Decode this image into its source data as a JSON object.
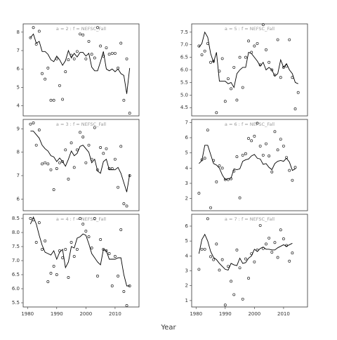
{
  "xlabel": "Year",
  "chart_data": [
    {
      "type": "scatter",
      "title": "a = 2 : f = NEFSC_Fall",
      "x": [
        1981,
        1982,
        1983,
        1984,
        1985,
        1986,
        1987,
        1988,
        1989,
        1990,
        1991,
        1992,
        1993,
        1994,
        1995,
        1996,
        1997,
        1998,
        1999,
        2000,
        2001,
        2002,
        2003,
        2004,
        2005,
        2006,
        2007,
        2008,
        2009,
        2010,
        2011,
        2012,
        2013,
        2014,
        2015
      ],
      "values": [
        7.7,
        8.25,
        7.35,
        8.05,
        5.75,
        5.45,
        6.05,
        4.3,
        4.3,
        6.55,
        5.1,
        4.35,
        5.85,
        6.5,
        6.75,
        6.55,
        6.95,
        7.9,
        7.85,
        6.55,
        7.5,
        6.8,
        6.6,
        8.25,
        7.25,
        6.7,
        7.15,
        6.8,
        6.85,
        6.85,
        6.05,
        7.4,
        4.3,
        6.55,
        3.6
      ],
      "line_values": [
        7.7,
        7.9,
        7.4,
        7.5,
        6.95,
        6.95,
        6.8,
        6.5,
        6.4,
        6.7,
        6.5,
        6.2,
        6.45,
        7.0,
        6.6,
        6.85,
        6.65,
        6.9,
        6.9,
        6.7,
        6.85,
        6.1,
        5.9,
        5.9,
        6.4,
        6.95,
        6.0,
        5.9,
        6.0,
        5.85,
        6.0,
        5.75,
        5.65,
        4.65,
        6.05
      ],
      "xlim": [
        1978.5,
        2018.2
      ],
      "ylim": [
        3.45,
        8.45
      ],
      "yticks": [
        4,
        5,
        6,
        7,
        8
      ]
    },
    {
      "type": "scatter",
      "title": "a = 3 : f = NEFSC_Fall",
      "x": [
        1981,
        1982,
        1983,
        1984,
        1985,
        1986,
        1987,
        1988,
        1989,
        1990,
        1991,
        1992,
        1993,
        1994,
        1995,
        1996,
        1997,
        1998,
        1999,
        2000,
        2001,
        2002,
        2003,
        2004,
        2005,
        2006,
        2007,
        2008,
        2009,
        2010,
        2011,
        2012,
        2013,
        2014,
        2015
      ],
      "values": [
        9.2,
        9.25,
        8.3,
        8.95,
        7.5,
        7.55,
        7.5,
        7.25,
        6.4,
        7.3,
        7.55,
        7.6,
        8.1,
        6.85,
        8.4,
        7.35,
        8.1,
        8.85,
        8.65,
        7.55,
        8.3,
        7.7,
        9.05,
        7.25,
        8.2,
        7.95,
        8.15,
        7.3,
        7.3,
        7.7,
        6.5,
        8.25,
        5.8,
        5.7,
        7.0
      ],
      "line_values": [
        8.9,
        8.9,
        8.75,
        8.6,
        8.3,
        8.15,
        8.05,
        7.85,
        7.8,
        7.6,
        7.75,
        7.6,
        7.4,
        7.7,
        8.05,
        7.85,
        7.95,
        8.25,
        8.3,
        8.15,
        8.0,
        7.55,
        7.7,
        7.2,
        7.1,
        7.6,
        7.7,
        7.25,
        7.25,
        7.25,
        7.35,
        7.1,
        6.7,
        6.3,
        7.05
      ],
      "xlim": [
        1978.5,
        2018.2
      ],
      "ylim": [
        5.5,
        9.4
      ],
      "yticks": [
        6,
        7,
        8,
        9
      ]
    },
    {
      "type": "scatter",
      "title": "a = 4 : f = NEFSC_Fall",
      "x": [
        1981,
        1982,
        1983,
        1984,
        1985,
        1986,
        1987,
        1988,
        1989,
        1990,
        1991,
        1992,
        1993,
        1994,
        1995,
        1996,
        1997,
        1998,
        1999,
        2000,
        2001,
        2002,
        2003,
        2004,
        2005,
        2006,
        2007,
        2008,
        2009,
        2010,
        2011,
        2012,
        2013,
        2014,
        2015
      ],
      "values": [
        8.5,
        8.45,
        7.65,
        8.35,
        7.4,
        7.7,
        6.25,
        6.55,
        6.8,
        6.5,
        7.35,
        7.1,
        7.4,
        6.4,
        7.65,
        7.15,
        7.4,
        8.5,
        8.3,
        8.05,
        7.85,
        7.45,
        8.5,
        6.45,
        7.75,
        7.4,
        7.35,
        7.25,
        6.1,
        7.15,
        6.45,
        8.1,
        5.9,
        5.4,
        6.1
      ],
      "line_values": [
        8.3,
        8.55,
        8.3,
        7.9,
        7.55,
        7.3,
        7.25,
        7.2,
        7.35,
        7.05,
        7.3,
        7.4,
        6.75,
        6.95,
        7.5,
        7.45,
        7.8,
        7.85,
        7.95,
        7.9,
        7.6,
        7.25,
        7.1,
        6.95,
        6.85,
        7.4,
        7.35,
        7.05,
        7.05,
        7.05,
        7.1,
        7.1,
        6.5,
        6.1,
        6.1
      ],
      "xlim": [
        1978.5,
        2018.2
      ],
      "ylim": [
        5.35,
        8.65
      ],
      "yticks": [
        {
          "value": 5.5,
          "label": "5.5"
        },
        {
          "value": 6,
          "label": "6.0"
        },
        {
          "value": 6.5,
          "label": "6.5"
        },
        {
          "value": 7,
          "label": "7.0"
        },
        {
          "value": 7.5,
          "label": "7.5"
        },
        {
          "value": 8,
          "label": "8.0"
        },
        {
          "value": 8.5,
          "label": "8.5"
        }
      ],
      "xticks": [
        1980,
        1990,
        2000,
        2010
      ]
    },
    {
      "type": "scatter",
      "title": "a = 5 : f = NEFSC_Fall",
      "x": [
        1981,
        1982,
        1983,
        1984,
        1985,
        1986,
        1987,
        1988,
        1989,
        1990,
        1991,
        1992,
        1993,
        1994,
        1995,
        1996,
        1997,
        1998,
        1999,
        2000,
        2001,
        2002,
        2003,
        2004,
        2005,
        2006,
        2007,
        2008,
        2009,
        2010,
        2011,
        2012,
        2013,
        2014,
        2015
      ],
      "values": [
        6.95,
        6.6,
        6.75,
        7.05,
        6.3,
        6.35,
        4.3,
        5.95,
        6.45,
        4.75,
        5.65,
        5.25,
        6.1,
        4.8,
        6.5,
        5.3,
        6.5,
        7.15,
        6.7,
        6.95,
        7.05,
        6.2,
        7.8,
        6.8,
        6.3,
        6.0,
        5.8,
        7.2,
        5.7,
        6.1,
        6.15,
        7.2,
        5.7,
        4.45,
        5.1
      ],
      "line_values": [
        6.9,
        7.05,
        7.5,
        7.3,
        6.65,
        6.3,
        6.7,
        5.55,
        5.55,
        5.55,
        5.45,
        5.5,
        5.3,
        5.85,
        6.0,
        6.1,
        6.1,
        6.7,
        6.65,
        6.5,
        6.35,
        6.15,
        6.3,
        6.0,
        6.1,
        6.0,
        5.75,
        5.85,
        6.4,
        6.1,
        6.25,
        6.0,
        5.85,
        5.5,
        5.45
      ],
      "xlim": [
        1978.5,
        2018.2
      ],
      "ylim": [
        4.17,
        7.83
      ],
      "yticks": [
        4.5,
        {
          "value": 5,
          "label": "5.0"
        },
        5.5,
        {
          "value": 6,
          "label": "6.0"
        },
        6.5,
        {
          "value": 7,
          "label": "7.0"
        },
        7.5
      ]
    },
    {
      "type": "scatter",
      "title": "a = 6 : f = NEFSC_Fall",
      "x": [
        1981,
        1982,
        1983,
        1984,
        1985,
        1986,
        1987,
        1988,
        1989,
        1990,
        1991,
        1992,
        1993,
        1994,
        1995,
        1996,
        1997,
        1998,
        1999,
        2000,
        2001,
        2002,
        2003,
        2004,
        2005,
        2006,
        2007,
        2008,
        2009,
        2010,
        2011,
        2012,
        2013,
        2014
      ],
      "values": [
        2.35,
        4.55,
        4.65,
        6.5,
        1.4,
        4.5,
        3.1,
        4.15,
        4.0,
        3.25,
        3.25,
        3.3,
        3.8,
        4.75,
        2.05,
        4.85,
        4.95,
        5.95,
        5.8,
        6.1,
        6.95,
        5.45,
        4.85,
        5.6,
        4.8,
        3.75,
        6.4,
        5.2,
        5.9,
        5.45,
        4.7,
        3.85,
        3.2,
        4.05
      ],
      "line_values": [
        4.3,
        4.5,
        5.5,
        5.5,
        4.9,
        4.3,
        4.2,
        4.0,
        3.55,
        3.25,
        3.3,
        3.35,
        3.95,
        3.9,
        3.95,
        4.45,
        4.55,
        4.6,
        4.8,
        4.9,
        4.65,
        4.6,
        4.25,
        4.3,
        4.05,
        3.9,
        4.3,
        4.45,
        4.5,
        4.45,
        4.65,
        4.4,
        3.85,
        3.95
      ],
      "xlim": [
        1978.5,
        2018.2
      ],
      "ylim": [
        1.2,
        7.2
      ],
      "yticks": [
        2,
        3,
        4,
        5,
        6,
        7
      ]
    },
    {
      "type": "scatter",
      "title": "a = 7 : f = NEFSC_Fall",
      "x": [
        1981,
        1982,
        1983,
        1984,
        1985,
        1986,
        1987,
        1988,
        1989,
        1990,
        1991,
        1992,
        1993,
        1994,
        1995,
        1996,
        1997,
        1998,
        1999,
        2000,
        2001,
        2002,
        2003,
        2004,
        2005,
        2006,
        2007,
        2008,
        2009,
        2010,
        2011,
        2012,
        2013
      ],
      "values": [
        3.1,
        4.45,
        4.45,
        6.5,
        3.95,
        3.75,
        4.8,
        3.05,
        3.75,
        0.7,
        3.3,
        2.3,
        1.4,
        4.4,
        3.2,
        1.1,
        3.8,
        2.5,
        4.15,
        3.6,
        4.4,
        6.05,
        4.5,
        4.8,
        5.2,
        4.25,
        4.9,
        3.9,
        5.75,
        5.15,
        4.7,
        3.65,
        4.2
      ],
      "line_values": [
        4.15,
        5.1,
        5.45,
        5.0,
        4.3,
        3.9,
        3.75,
        3.5,
        3.3,
        3.1,
        3.05,
        3.5,
        3.4,
        3.35,
        3.85,
        3.5,
        3.55,
        3.85,
        4.0,
        4.45,
        4.3,
        4.5,
        4.6,
        4.45,
        4.45,
        4.4,
        4.4,
        4.55,
        4.65,
        4.75,
        4.65,
        4.75,
        4.85
      ],
      "xlim": [
        1978.5,
        2018.2
      ],
      "ylim": [
        0.57,
        6.8
      ],
      "yticks": [
        1,
        2,
        3,
        4,
        5,
        6
      ],
      "xticks": [
        1980,
        1990,
        2000,
        2010
      ]
    }
  ]
}
